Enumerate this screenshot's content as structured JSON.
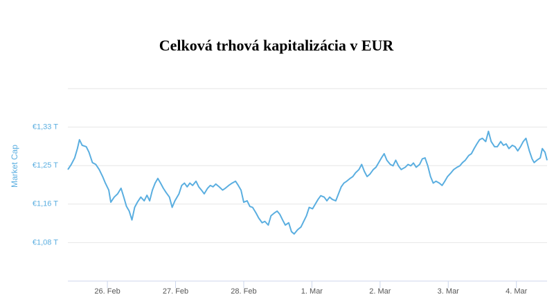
{
  "chart_data": {
    "type": "line",
    "title": "Celková trhová kapitalizácia v EUR",
    "y_label": "Market Cap",
    "color": "#5aaee0",
    "grid": true,
    "xlim": [
      -0.58,
      6.45
    ],
    "xticks": [
      {
        "value": 0,
        "label": "26. Feb"
      },
      {
        "value": 1,
        "label": "27. Feb"
      },
      {
        "value": 2,
        "label": "28. Feb"
      },
      {
        "value": 3,
        "label": "1. Mar"
      },
      {
        "value": 4,
        "label": "2. Mar"
      },
      {
        "value": 5,
        "label": "3. Mar"
      },
      {
        "value": 6,
        "label": "4. Mar"
      }
    ],
    "ylim": [
      1.0,
      1.4125
    ],
    "yticks": [
      {
        "value": 1.0825,
        "label": "€1,08 T"
      },
      {
        "value": 1.165,
        "label": "€1,16 T"
      },
      {
        "value": 1.2475,
        "label": "€1,25 T"
      },
      {
        "value": 1.33,
        "label": "€1,33 T"
      }
    ],
    "x": [
      -0.58,
      -0.53,
      -0.48,
      -0.44,
      -0.41,
      -0.37,
      -0.31,
      -0.27,
      -0.22,
      -0.17,
      -0.12,
      -0.07,
      -0.03,
      0.02,
      0.05,
      0.1,
      0.15,
      0.2,
      0.24,
      0.28,
      0.32,
      0.36,
      0.4,
      0.44,
      0.49,
      0.54,
      0.58,
      0.62,
      0.66,
      0.7,
      0.74,
      0.78,
      0.82,
      0.86,
      0.91,
      0.95,
      0.99,
      1.05,
      1.09,
      1.13,
      1.17,
      1.21,
      1.25,
      1.3,
      1.34,
      1.38,
      1.42,
      1.47,
      1.51,
      1.55,
      1.59,
      1.64,
      1.69,
      1.73,
      1.78,
      1.83,
      1.88,
      1.92,
      1.96,
      2.0,
      2.05,
      2.09,
      2.13,
      2.18,
      2.22,
      2.27,
      2.31,
      2.36,
      2.4,
      2.45,
      2.49,
      2.53,
      2.57,
      2.61,
      2.66,
      2.7,
      2.74,
      2.79,
      2.84,
      2.88,
      2.92,
      2.96,
      3.01,
      3.05,
      3.09,
      3.13,
      3.18,
      3.22,
      3.26,
      3.3,
      3.35,
      3.39,
      3.43,
      3.47,
      3.51,
      3.56,
      3.6,
      3.64,
      3.69,
      3.73,
      3.77,
      3.81,
      3.85,
      3.9,
      3.94,
      3.98,
      4.02,
      4.06,
      4.1,
      4.15,
      4.19,
      4.23,
      4.27,
      4.31,
      4.37,
      4.41,
      4.45,
      4.49,
      4.53,
      4.58,
      4.62,
      4.66,
      4.7,
      4.74,
      4.78,
      4.82,
      4.87,
      4.91,
      4.95,
      4.99,
      5.04,
      5.08,
      5.13,
      5.17,
      5.21,
      5.25,
      5.3,
      5.34,
      5.38,
      5.42,
      5.46,
      5.5,
      5.55,
      5.59,
      5.63,
      5.68,
      5.72,
      5.77,
      5.81,
      5.85,
      5.89,
      5.94,
      5.98,
      6.02,
      6.06,
      6.1,
      6.14,
      6.19,
      6.23,
      6.26,
      6.3,
      6.35,
      6.38,
      6.42,
      6.45
    ],
    "values": [
      1.239,
      1.25,
      1.264,
      1.284,
      1.303,
      1.291,
      1.288,
      1.276,
      1.254,
      1.25,
      1.239,
      1.224,
      1.21,
      1.195,
      1.169,
      1.18,
      1.187,
      1.199,
      1.18,
      1.16,
      1.15,
      1.131,
      1.158,
      1.169,
      1.18,
      1.172,
      1.184,
      1.172,
      1.195,
      1.21,
      1.22,
      1.21,
      1.199,
      1.19,
      1.18,
      1.158,
      1.172,
      1.187,
      1.205,
      1.21,
      1.202,
      1.21,
      1.205,
      1.214,
      1.202,
      1.195,
      1.187,
      1.199,
      1.205,
      1.202,
      1.208,
      1.202,
      1.195,
      1.199,
      1.205,
      1.21,
      1.214,
      1.205,
      1.195,
      1.169,
      1.172,
      1.16,
      1.158,
      1.146,
      1.135,
      1.125,
      1.128,
      1.12,
      1.14,
      1.146,
      1.15,
      1.143,
      1.131,
      1.12,
      1.125,
      1.106,
      1.101,
      1.11,
      1.116,
      1.128,
      1.14,
      1.158,
      1.155,
      1.165,
      1.175,
      1.183,
      1.18,
      1.172,
      1.18,
      1.175,
      1.172,
      1.187,
      1.202,
      1.21,
      1.214,
      1.22,
      1.224,
      1.232,
      1.239,
      1.25,
      1.235,
      1.224,
      1.229,
      1.239,
      1.244,
      1.254,
      1.264,
      1.273,
      1.259,
      1.25,
      1.247,
      1.259,
      1.247,
      1.239,
      1.244,
      1.25,
      1.247,
      1.253,
      1.244,
      1.25,
      1.262,
      1.264,
      1.247,
      1.224,
      1.21,
      1.214,
      1.21,
      1.205,
      1.214,
      1.224,
      1.232,
      1.239,
      1.244,
      1.247,
      1.254,
      1.259,
      1.269,
      1.273,
      1.284,
      1.294,
      1.303,
      1.306,
      1.299,
      1.321,
      1.299,
      1.288,
      1.288,
      1.299,
      1.291,
      1.294,
      1.284,
      1.291,
      1.288,
      1.279,
      1.288,
      1.299,
      1.306,
      1.279,
      1.262,
      1.254,
      1.259,
      1.264,
      1.284,
      1.276,
      1.259
    ]
  }
}
